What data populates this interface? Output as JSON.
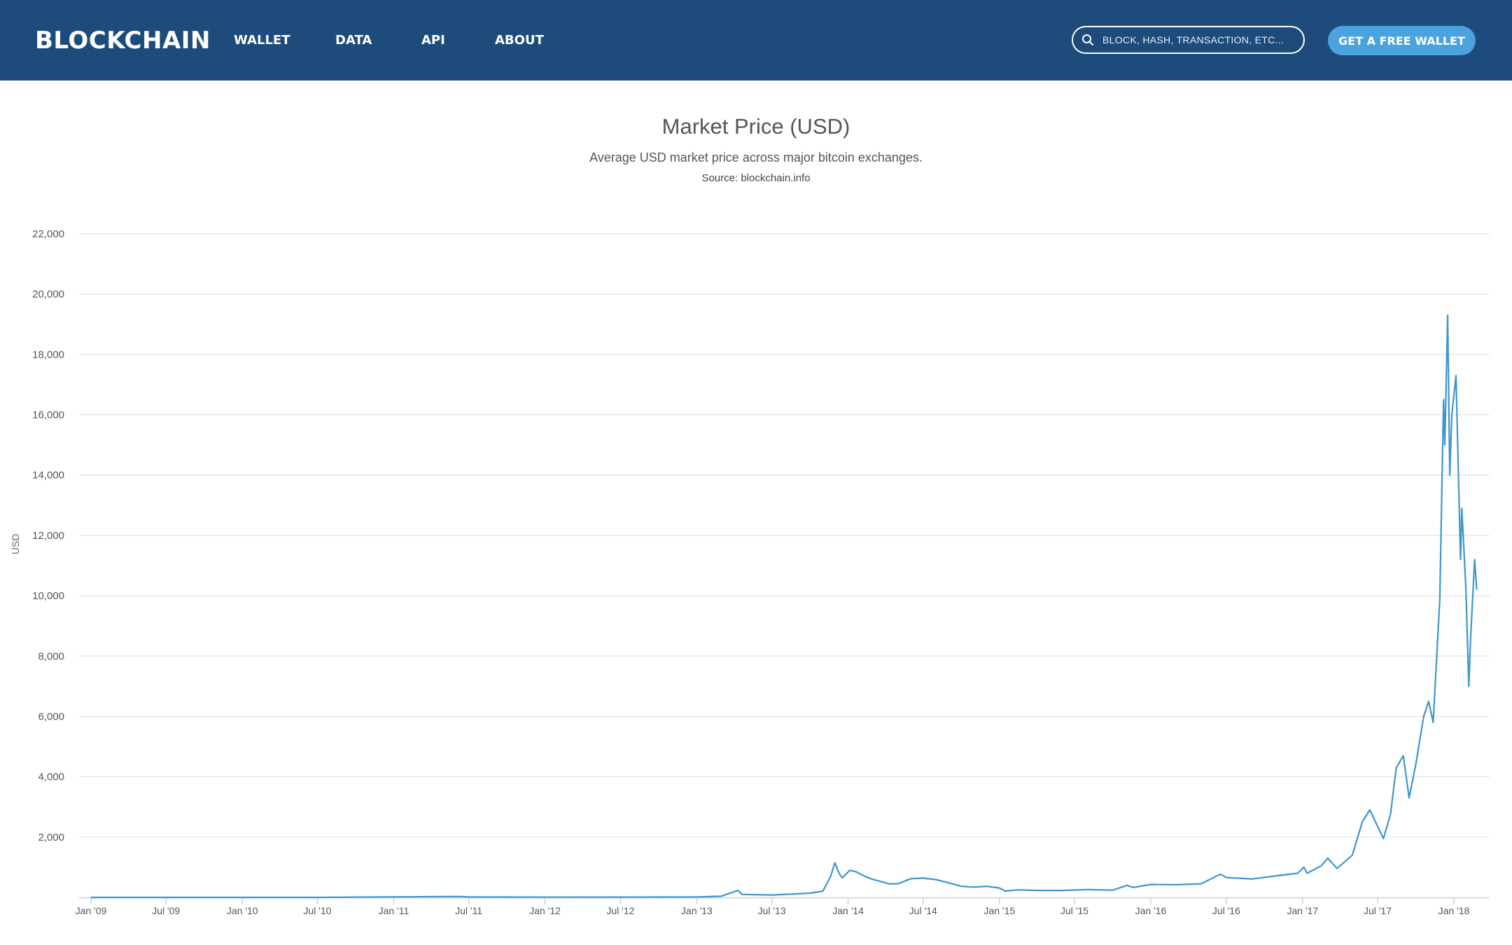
{
  "header": {
    "logo": "BLOCKCHAIN",
    "nav": [
      "WALLET",
      "DATA",
      "API",
      "ABOUT"
    ],
    "search_placeholder": "BLOCK, HASH, TRANSACTION, ETC...",
    "cta_label": "GET A FREE WALLET",
    "background_color": "#1d4b7b",
    "cta_color": "#4aa3df",
    "search_icon": "search-icon"
  },
  "chart_data": {
    "type": "line",
    "title": "Market Price (USD)",
    "subtitle": "Average USD market price across major bitcoin exchanges.",
    "source": "Source: blockchain.info",
    "ylabel": "USD",
    "xlabel": "",
    "ylim": [
      0,
      22000
    ],
    "yticks": [
      2000,
      4000,
      6000,
      8000,
      10000,
      12000,
      14000,
      16000,
      18000,
      20000,
      22000
    ],
    "ytick_labels": [
      "2,000",
      "4,000",
      "6,000",
      "8,000",
      "10,000",
      "12,000",
      "14,000",
      "16,000",
      "18,000",
      "20,000",
      "22,000"
    ],
    "xlim": [
      "2009-01",
      "2018-03"
    ],
    "xticks": [
      "Jan '09",
      "Jul '09",
      "Jan '10",
      "Jul '10",
      "Jan '11",
      "Jul '11",
      "Jan '12",
      "Jul '12",
      "Jan '13",
      "Jul '13",
      "Jan '14",
      "Jul '14",
      "Jan '15",
      "Jul '15",
      "Jan '16",
      "Jul '16",
      "Jan '17",
      "Jul '17",
      "Jan '18"
    ],
    "grid": true,
    "line_color": "#3e95cd",
    "series": [
      {
        "name": "",
        "x": [
          "2009-01-01",
          "2010-07-01",
          "2011-06-10",
          "2011-07-01",
          "2012-01-01",
          "2012-08-01",
          "2013-01-01",
          "2013-03-01",
          "2013-04-10",
          "2013-04-20",
          "2013-07-01",
          "2013-10-01",
          "2013-11-01",
          "2013-11-20",
          "2013-11-30",
          "2013-12-10",
          "2013-12-18",
          "2014-01-05",
          "2014-01-20",
          "2014-02-10",
          "2014-03-01",
          "2014-04-10",
          "2014-05-01",
          "2014-06-01",
          "2014-07-01",
          "2014-08-01",
          "2014-09-01",
          "2014-10-01",
          "2014-11-01",
          "2014-12-01",
          "2015-01-01",
          "2015-01-15",
          "2015-02-15",
          "2015-04-01",
          "2015-06-01",
          "2015-08-01",
          "2015-10-01",
          "2015-11-05",
          "2015-11-20",
          "2016-01-01",
          "2016-03-01",
          "2016-05-01",
          "2016-06-17",
          "2016-07-01",
          "2016-09-01",
          "2016-11-01",
          "2016-12-20",
          "2017-01-04",
          "2017-01-12",
          "2017-02-15",
          "2017-03-03",
          "2017-03-25",
          "2017-05-01",
          "2017-05-25",
          "2017-06-12",
          "2017-07-15",
          "2017-08-01",
          "2017-08-15",
          "2017-09-01",
          "2017-09-15",
          "2017-10-01",
          "2017-10-20",
          "2017-11-01",
          "2017-11-12",
          "2017-11-28",
          "2017-12-07",
          "2017-12-10",
          "2017-12-17",
          "2017-12-22",
          "2017-12-27",
          "2018-01-06",
          "2018-01-17",
          "2018-01-20",
          "2018-01-30",
          "2018-02-06",
          "2018-02-10",
          "2018-02-20",
          "2018-02-25"
        ],
        "y": [
          0,
          0,
          30,
          14,
          6,
          10,
          13,
          40,
          230,
          100,
          80,
          140,
          210,
          700,
          1150,
          800,
          650,
          900,
          850,
          700,
          600,
          450,
          450,
          620,
          640,
          590,
          480,
          370,
          340,
          370,
          310,
          210,
          250,
          230,
          230,
          260,
          240,
          400,
          330,
          430,
          420,
          450,
          770,
          660,
          610,
          720,
          800,
          1000,
          800,
          1050,
          1300,
          960,
          1400,
          2500,
          2900,
          1950,
          2750,
          4300,
          4700,
          3300,
          4400,
          6000,
          6500,
          5800,
          9900,
          16500,
          15000,
          19300,
          14000,
          16000,
          17300,
          11200,
          12900,
          10200,
          7000,
          8500,
          11200,
          10200
        ]
      }
    ]
  }
}
